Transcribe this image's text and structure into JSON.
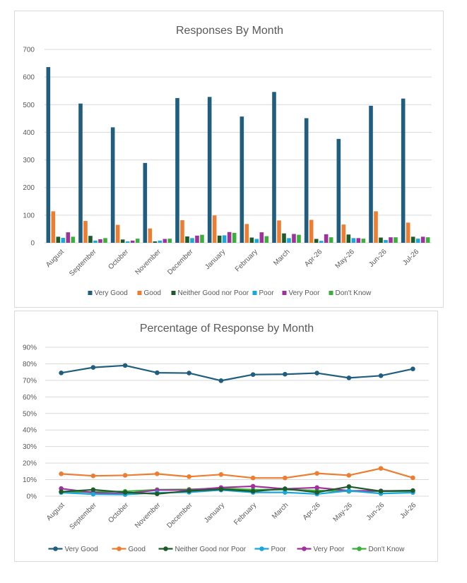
{
  "chart_data": [
    {
      "type": "bar",
      "title": "Responses By Month",
      "xlabel": "",
      "ylabel": "",
      "ylim": [
        0,
        700
      ],
      "yticks": [
        "0",
        "100",
        "200",
        "300",
        "400",
        "500",
        "600",
        "700"
      ],
      "grid": true,
      "legend_position": "bottom",
      "categories": [
        "August",
        "September",
        "October",
        "November",
        "December",
        "January",
        "February",
        "March",
        "Apr-26",
        "May-26",
        "Jun-26",
        "Jul-26"
      ],
      "series": [
        {
          "name": "Very Good",
          "color": "#1f5e7e",
          "values": [
            636,
            504,
            418,
            289,
            524,
            528,
            457,
            546,
            451,
            376,
            496,
            522
          ]
        },
        {
          "name": "Good",
          "color": "#ed7d31",
          "values": [
            114,
            79,
            65,
            52,
            82,
            99,
            68,
            81,
            83,
            66,
            114,
            73
          ]
        },
        {
          "name": "Neither Good nor Poor",
          "color": "#1d5c2a",
          "values": [
            22,
            25,
            12,
            5,
            23,
            26,
            19,
            34,
            14,
            30,
            19,
            22
          ]
        },
        {
          "name": "Poor",
          "color": "#1aa7dc",
          "values": [
            18,
            8,
            5,
            8,
            17,
            27,
            14,
            17,
            7,
            17,
            10,
            15
          ]
        },
        {
          "name": "Very Poor",
          "color": "#a0309b",
          "values": [
            38,
            13,
            8,
            14,
            26,
            39,
            38,
            32,
            31,
            17,
            20,
            22
          ]
        },
        {
          "name": "Don't Know",
          "color": "#3cae3c",
          "values": [
            22,
            17,
            15,
            15,
            29,
            36,
            24,
            29,
            20,
            15,
            20,
            20
          ]
        }
      ]
    },
    {
      "type": "line",
      "title": "Percentage of Response by Month",
      "xlabel": "",
      "ylabel": "",
      "ylim": [
        0,
        90
      ],
      "yticks": [
        "0%",
        "10%",
        "20%",
        "30%",
        "40%",
        "50%",
        "60%",
        "70%",
        "80%",
        "90%"
      ],
      "grid": true,
      "legend_position": "bottom",
      "categories": [
        "August",
        "September",
        "October",
        "November",
        "December",
        "January",
        "February",
        "March",
        "Apr-26",
        "May-26",
        "Jun-26",
        "Jul-26"
      ],
      "series": [
        {
          "name": "Very Good",
          "color": "#1f5e7e",
          "values": [
            74.5,
            77.8,
            79.0,
            74.6,
            74.4,
            69.8,
            73.5,
            73.7,
            74.4,
            71.5,
            72.8,
            76.9
          ]
        },
        {
          "name": "Good",
          "color": "#ed7d31",
          "values": [
            13.5,
            12.3,
            12.6,
            13.5,
            11.8,
            13.1,
            11.0,
            11.0,
            13.8,
            12.6,
            16.8,
            11.1
          ]
        },
        {
          "name": "Neither Good nor Poor",
          "color": "#1d5c2a",
          "values": [
            2.7,
            3.9,
            2.3,
            1.4,
            3.2,
            4.2,
            3.0,
            4.5,
            2.3,
            5.8,
            3.0,
            3.4
          ]
        },
        {
          "name": "Poor",
          "color": "#1aa7dc",
          "values": [
            2.2,
            1.2,
            1.0,
            2.1,
            2.4,
            3.7,
            2.3,
            2.3,
            1.3,
            3.3,
            1.6,
            2.2
          ]
        },
        {
          "name": "Very Poor",
          "color": "#a0309b",
          "values": [
            4.6,
            2.1,
            1.5,
            3.7,
            3.7,
            5.2,
            6.0,
            4.4,
            5.2,
            3.3,
            3.2,
            3.3
          ]
        },
        {
          "name": "Don't Know",
          "color": "#3cae3c",
          "values": [
            2.6,
            2.5,
            2.9,
            3.9,
            4.1,
            4.8,
            3.9,
            4.0,
            3.4,
            2.9,
            3.0,
            3.0
          ]
        }
      ]
    }
  ]
}
